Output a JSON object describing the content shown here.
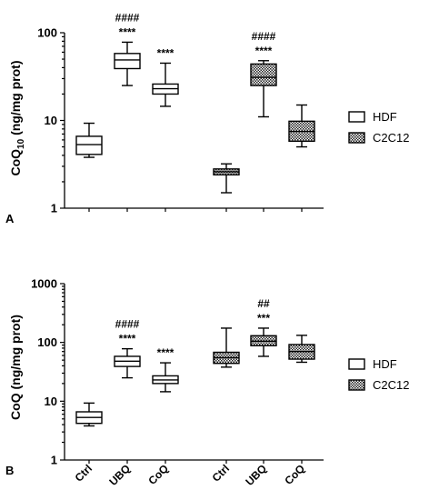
{
  "chart_data": [
    {
      "type": "box",
      "panel_label": "A",
      "ylabel": "CoQ10 (ng/mg prot)",
      "yscale": "log",
      "ylim": [
        1,
        100
      ],
      "yticks": [
        1,
        10,
        100
      ],
      "ytick_labels": [
        "1",
        "10",
        "100"
      ],
      "categories": [
        "Ctrl",
        "UBQ",
        "CoQ",
        "Ctrl",
        "UBQ",
        "CoQ"
      ],
      "legend": {
        "placement": "right",
        "entries": [
          "HDF",
          "C2C12"
        ]
      },
      "series": [
        {
          "name": "HDF",
          "pattern": "open",
          "boxes": [
            {
              "category": "Ctrl",
              "min": 3.8,
              "q1": 4.1,
              "median": 5.3,
              "q3": 6.6,
              "max": 9.3,
              "annotations": []
            },
            {
              "category": "UBQ",
              "min": 25,
              "q1": 39,
              "median": 49,
              "q3": 58,
              "max": 78,
              "annotations": [
                "####",
                "****"
              ]
            },
            {
              "category": "CoQ",
              "min": 14.5,
              "q1": 20,
              "median": 23,
              "q3": 26,
              "max": 45,
              "annotations": [
                "****"
              ]
            }
          ]
        },
        {
          "name": "C2C12",
          "pattern": "checkered",
          "boxes": [
            {
              "category": "Ctrl",
              "min": 1.5,
              "q1": 2.4,
              "median": 2.6,
              "q3": 2.8,
              "max": 3.2,
              "annotations": []
            },
            {
              "category": "UBQ",
              "min": 11,
              "q1": 25,
              "median": 31,
              "q3": 44,
              "max": 48,
              "annotations": [
                "####",
                "****"
              ]
            },
            {
              "category": "CoQ",
              "min": 5,
              "q1": 5.8,
              "median": 7.5,
              "q3": 9.8,
              "max": 15,
              "annotations": []
            }
          ]
        }
      ]
    },
    {
      "type": "box",
      "panel_label": "B",
      "ylabel": "CoQ (ng/mg prot)",
      "yscale": "log",
      "ylim": [
        1,
        1000
      ],
      "yticks": [
        1,
        10,
        100,
        1000
      ],
      "ytick_labels": [
        "1",
        "10",
        "100",
        "1000"
      ],
      "categories": [
        "Ctrl",
        "UBQ",
        "CoQ",
        "Ctrl",
        "UBQ",
        "CoQ"
      ],
      "legend": {
        "placement": "right",
        "entries": [
          "HDF",
          "C2C12"
        ]
      },
      "series": [
        {
          "name": "HDF",
          "pattern": "open",
          "boxes": [
            {
              "category": "Ctrl",
              "min": 3.8,
              "q1": 4.2,
              "median": 5.3,
              "q3": 6.6,
              "max": 9.3,
              "annotations": []
            },
            {
              "category": "UBQ",
              "min": 25,
              "q1": 39,
              "median": 48,
              "q3": 58,
              "max": 78,
              "annotations": [
                "####",
                "****"
              ]
            },
            {
              "category": "CoQ",
              "min": 14.5,
              "q1": 20,
              "median": 23,
              "q3": 27,
              "max": 45,
              "annotations": [
                "****"
              ]
            }
          ]
        },
        {
          "name": "C2C12",
          "pattern": "checkered",
          "boxes": [
            {
              "category": "Ctrl",
              "min": 38,
              "q1": 44,
              "median": 55,
              "q3": 68,
              "max": 175,
              "annotations": []
            },
            {
              "category": "UBQ",
              "min": 58,
              "q1": 88,
              "median": 105,
              "q3": 130,
              "max": 175,
              "annotations": [
                "##",
                "***"
              ]
            },
            {
              "category": "CoQ",
              "min": 46,
              "q1": 52,
              "median": 70,
              "q3": 92,
              "max": 132,
              "annotations": []
            }
          ]
        }
      ]
    }
  ]
}
